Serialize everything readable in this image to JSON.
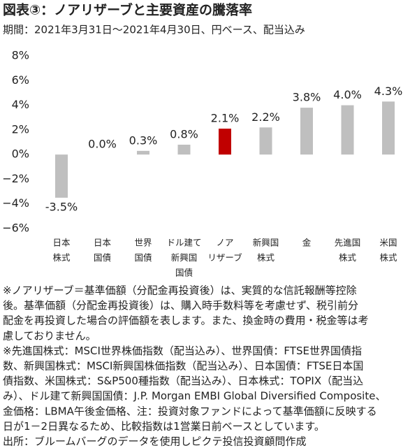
{
  "chart_data": {
    "type": "bar",
    "title": "図表③：ノアリザーブと主要資産の騰落率",
    "subtitle": "期間：2021年3月31日～2021年4月30日、円ベース、配当込み",
    "categories": [
      [
        "日本",
        "株式"
      ],
      [
        "日本",
        "国債"
      ],
      [
        "世界",
        "国債"
      ],
      [
        "ドル建て",
        "新興国",
        "国債"
      ],
      [
        "ノア",
        "リザーブ"
      ],
      [
        "新興国",
        "株式"
      ],
      [
        "金"
      ],
      [
        "先進国",
        "株式"
      ],
      [
        "米国",
        "株式"
      ]
    ],
    "values": [
      -3.5,
      0.0,
      0.3,
      0.8,
      2.1,
      2.2,
      3.8,
      4.0,
      4.3
    ],
    "value_labels": [
      "-3.5%",
      "0.0%",
      "0.3%",
      "0.8%",
      "2.1%",
      "2.2%",
      "3.8%",
      "4.0%",
      "4.3%"
    ],
    "colors": [
      "#bfbfbf",
      "#bfbfbf",
      "#bfbfbf",
      "#bfbfbf",
      "#c00000",
      "#bfbfbf",
      "#bfbfbf",
      "#bfbfbf",
      "#bfbfbf"
    ],
    "ylim": [
      -6,
      8
    ],
    "yticks": [
      {
        "value": -6,
        "label": "−6%"
      },
      {
        "value": -4,
        "label": "−4%"
      },
      {
        "value": -2,
        "label": "−2%"
      },
      {
        "value": 0,
        "label": "0%"
      },
      {
        "value": 2,
        "label": "2%"
      },
      {
        "value": 4,
        "label": "4%"
      },
      {
        "value": 6,
        "label": "6%"
      },
      {
        "value": 8,
        "label": "8%"
      }
    ],
    "grid": false,
    "notes": [
      "※ノアリザーブ＝基準価額（分配金再投資後）は、実質的な信託報酬等控除",
      "後。基準価額（分配金再投資後）は、購入時手数料等を考慮せず、税引前分",
      "配金を再投資した場合の評価額を表します。また、換金時の費用・税金等は考",
      "慮しておりません。",
      "※先進国株式：MSCI世界株価指数（配当込み）、世界国債：FTSE世界国債指",
      "数、新興国株式：MSCI新興国株価指数（配当込み）、日本国債：FTSE日本国",
      "債指数、米国株式：S&P500種指数（配当込み）、日本株式：TOPIX（配当込",
      "み）、ドル建て新興国国債：J.P. Morgan EMBI Global Diversified Composite、",
      "金価格：LBMA午後金価格、注：投資対象ファンドによって基準価額に反映する",
      "日が1－2日異なるため、比較指数は1営業日前ベースとしています。",
      "出所：ブルームバーグのデータを使用しピクテ投信投資顧問作成"
    ]
  }
}
